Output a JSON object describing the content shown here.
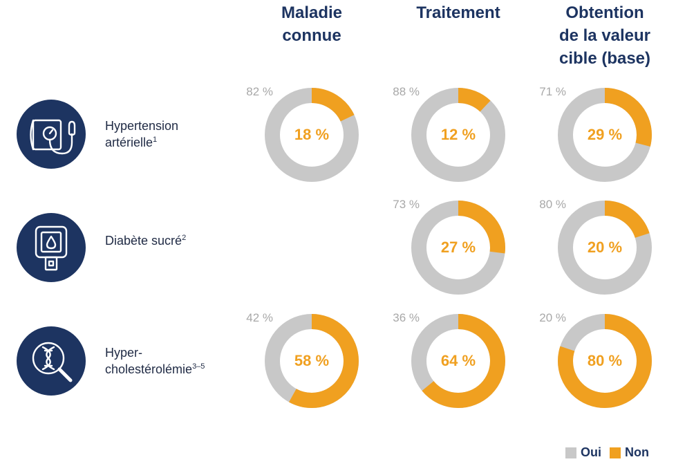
{
  "columns": [
    {
      "title": "Maladie connue",
      "lines": [
        "Maladie",
        "connue"
      ]
    },
    {
      "title": "Traitement",
      "lines": [
        "Traitement"
      ]
    },
    {
      "title": "Obtention de la valeur cible (base)",
      "lines": [
        "Obtention",
        "de la valeur",
        "cible (base)"
      ]
    }
  ],
  "rows": [
    {
      "label_lines": [
        "Hypertension",
        "artérielle"
      ],
      "sup": "1",
      "icon": "blood-pressure-monitor-icon"
    },
    {
      "label_lines": [
        "Diabète sucré"
      ],
      "sup": "2",
      "icon": "glucose-meter-icon"
    },
    {
      "label_lines": [
        "Hyper-",
        "cholestérolémie"
      ],
      "sup": "3–5",
      "icon": "dna-magnifier-icon"
    }
  ],
  "colors": {
    "oui": "#c8c8c8",
    "non": "#f0a020",
    "navy": "#1d3461"
  },
  "legend": [
    {
      "label": "Oui",
      "color": "#c8c8c8"
    },
    {
      "label": "Non",
      "color": "#f0a020"
    }
  ],
  "chart_data": {
    "type": "pie",
    "style": "donut",
    "series": [
      "Oui",
      "Non"
    ],
    "cells": [
      {
        "row": "Hypertension artérielle",
        "column": "Maladie connue",
        "oui": 82,
        "non": 18,
        "oui_label": "82 %",
        "non_label": "18 %"
      },
      {
        "row": "Hypertension artérielle",
        "column": "Traitement",
        "oui": 88,
        "non": 12,
        "oui_label": "88 %",
        "non_label": "12 %"
      },
      {
        "row": "Hypertension artérielle",
        "column": "Obtention de la valeur cible (base)",
        "oui": 71,
        "non": 29,
        "oui_label": "71 %",
        "non_label": "29 %"
      },
      {
        "row": "Diabète sucré",
        "column": "Traitement",
        "oui": 73,
        "non": 27,
        "oui_label": "73 %",
        "non_label": "27 %"
      },
      {
        "row": "Diabète sucré",
        "column": "Obtention de la valeur cible (base)",
        "oui": 80,
        "non": 20,
        "oui_label": "80 %",
        "non_label": "20 %"
      },
      {
        "row": "Hyper-cholestérolémie",
        "column": "Maladie connue",
        "oui": 42,
        "non": 58,
        "oui_label": "42 %",
        "non_label": "58 %"
      },
      {
        "row": "Hyper-cholestérolémie",
        "column": "Traitement",
        "oui": 36,
        "non": 64,
        "oui_label": "36 %",
        "non_label": "64 %"
      },
      {
        "row": "Hyper-cholestérolémie",
        "column": "Obtention de la valeur cible (base)",
        "oui": 20,
        "non": 80,
        "oui_label": "20 %",
        "non_label": "80 %"
      }
    ]
  }
}
